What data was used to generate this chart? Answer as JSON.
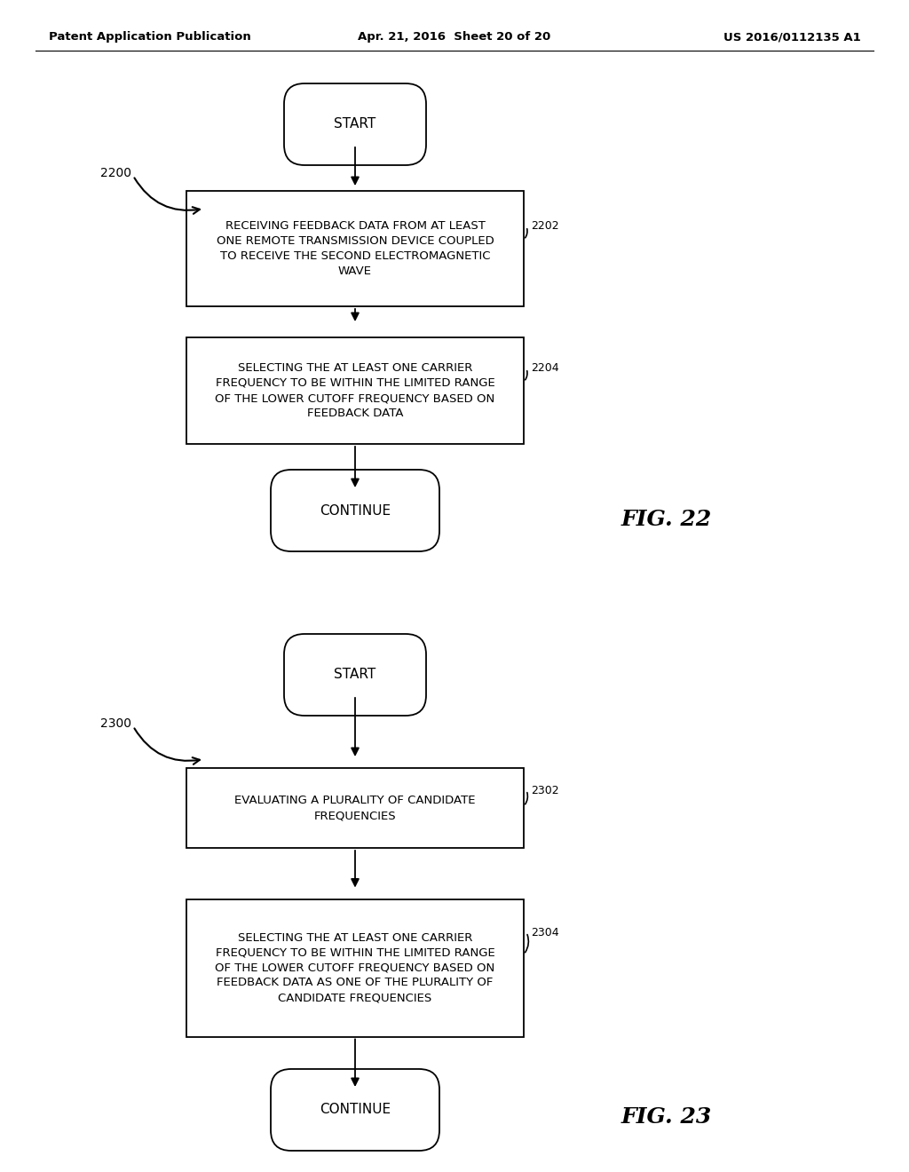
{
  "background_color": "#ffffff",
  "header_left": "Patent Application Publication",
  "header_center": "Apr. 21, 2016  Sheet 20 of 20",
  "header_right": "US 2016/0112135 A1",
  "fig22": {
    "diagram_label": "2200",
    "fig_label": "FIG. 22",
    "start_text": "START",
    "box1_text": "RECEIVING FEEDBACK DATA FROM AT LEAST\nONE REMOTE TRANSMISSION DEVICE COUPLED\nTO RECEIVE THE SECOND ELECTROMAGNETIC\nWAVE",
    "box1_label": "2202",
    "box2_text": "SELECTING THE AT LEAST ONE CARRIER\nFREQUENCY TO BE WITHIN THE LIMITED RANGE\nOF THE LOWER CUTOFF FREQUENCY BASED ON\nFEEDBACK DATA",
    "box2_label": "2204",
    "continue_text": "CONTINUE"
  },
  "fig23": {
    "diagram_label": "2300",
    "fig_label": "FIG. 23",
    "start_text": "START",
    "box1_text": "EVALUATING A PLURALITY OF CANDIDATE\nFREQUENCIES",
    "box1_label": "2302",
    "box2_text": "SELECTING THE AT LEAST ONE CARRIER\nFREQUENCY TO BE WITHIN THE LIMITED RANGE\nOF THE LOWER CUTOFF FREQUENCY BASED ON\nFEEDBACK DATA AS ONE OF THE PLURALITY OF\nCANDIDATE FREQUENCIES",
    "box2_label": "2304",
    "continue_text": "CONTINUE"
  }
}
